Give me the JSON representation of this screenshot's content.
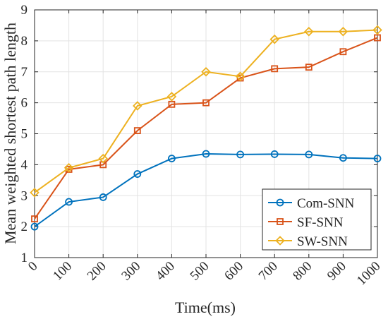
{
  "chart_data": {
    "type": "line",
    "title": "",
    "xlabel": "Time(ms)",
    "ylabel": "Mean weighted shortest path length",
    "x": [
      0,
      100,
      200,
      300,
      400,
      500,
      600,
      700,
      800,
      900,
      1000
    ],
    "x_tick_labels": [
      "0",
      "100",
      "200",
      "300",
      "400",
      "500",
      "600",
      "700",
      "800",
      "900",
      "1000"
    ],
    "y_ticks": [
      1,
      2,
      3,
      4,
      5,
      6,
      7,
      8,
      9
    ],
    "xlim": [
      0,
      1000
    ],
    "ylim": [
      1,
      9
    ],
    "grid": true,
    "legend_position": "bottom-right",
    "series": [
      {
        "name": "Com-SNN",
        "marker": "circle",
        "color": "#0072BD",
        "values": [
          2.0,
          2.8,
          2.95,
          3.7,
          4.2,
          4.35,
          4.33,
          4.34,
          4.33,
          4.22,
          4.2
        ]
      },
      {
        "name": "SF-SNN",
        "marker": "square",
        "color": "#D95319",
        "values": [
          2.25,
          3.85,
          4.0,
          5.1,
          5.95,
          6.0,
          6.8,
          7.1,
          7.15,
          7.65,
          8.1
        ]
      },
      {
        "name": "SW-SNN",
        "marker": "diamond",
        "color": "#EDB120",
        "values": [
          3.1,
          3.9,
          4.2,
          5.9,
          6.2,
          7.0,
          6.85,
          8.05,
          8.3,
          8.3,
          8.35
        ]
      }
    ]
  }
}
